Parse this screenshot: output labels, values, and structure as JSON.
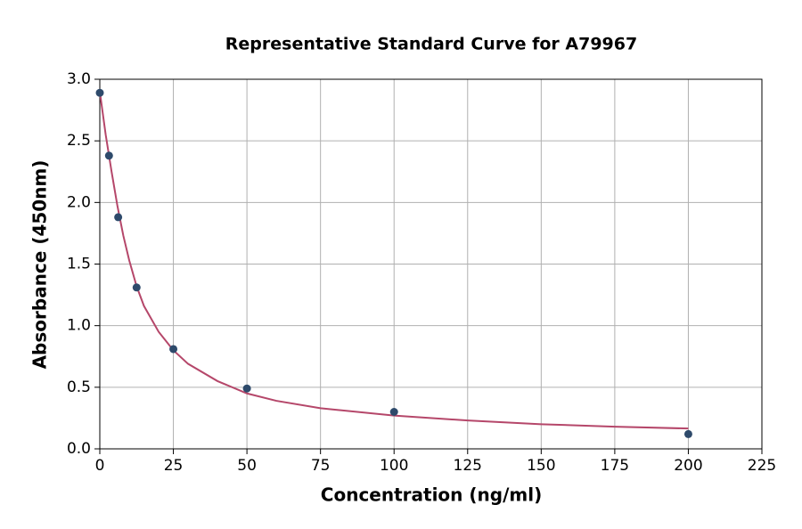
{
  "chart_data": {
    "type": "scatter",
    "title": "Representative Standard Curve for A79967",
    "xlabel": "Concentration (ng/ml)",
    "ylabel": "Absorbance (450nm)",
    "xlim": [
      0,
      225
    ],
    "ylim": [
      0,
      3
    ],
    "xticks": [
      0,
      25,
      50,
      75,
      100,
      125,
      150,
      175,
      200,
      225
    ],
    "yticks": [
      {
        "value": 0,
        "label": "0.0"
      },
      {
        "value": 0.5,
        "label": "0.5"
      },
      {
        "value": 1,
        "label": "1.0"
      },
      {
        "value": 1.5,
        "label": "1.5"
      },
      {
        "value": 2,
        "label": "2.0"
      },
      {
        "value": 2.5,
        "label": "2.5"
      },
      {
        "value": 3,
        "label": "3.0"
      }
    ],
    "grid": true,
    "series": [
      {
        "type": "scatter",
        "color": "#2e4a6b",
        "x": [
          0,
          3.125,
          6.25,
          12.5,
          25,
          50,
          100,
          200
        ],
        "values": [
          2.89,
          2.38,
          1.88,
          1.31,
          0.81,
          0.49,
          0.3,
          0.12
        ]
      },
      {
        "type": "line",
        "color": "#b5476a",
        "x": [
          0,
          2,
          4,
          6,
          8,
          10,
          12.5,
          15,
          20,
          25,
          30,
          40,
          50,
          60,
          75,
          100,
          125,
          150,
          175,
          200
        ],
        "values": [
          2.9,
          2.55,
          2.25,
          1.97,
          1.73,
          1.53,
          1.32,
          1.16,
          0.95,
          0.8,
          0.69,
          0.55,
          0.45,
          0.39,
          0.33,
          0.27,
          0.23,
          0.2,
          0.18,
          0.165
        ]
      }
    ]
  }
}
